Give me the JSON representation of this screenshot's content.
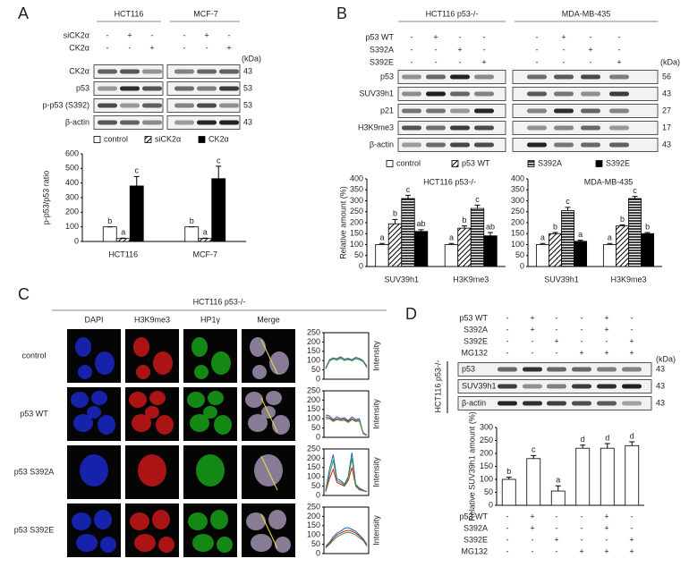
{
  "panels": {
    "A": {
      "label": "A",
      "cell_lines": [
        "HCT116",
        "MCF-7"
      ],
      "treatments": [
        {
          "name": "siCK2α",
          "signs": [
            "-",
            "+",
            "-",
            "-",
            "+",
            "-"
          ]
        },
        {
          "name": "CK2α",
          "signs": [
            "-",
            "-",
            "+",
            "-",
            "-",
            "+"
          ]
        }
      ],
      "unit": "(kDa)",
      "blots": [
        {
          "name": "CK2α",
          "kda": 43
        },
        {
          "name": "p53",
          "kda": 53
        },
        {
          "name": "p-p53 (S392)",
          "kda": 53
        },
        {
          "name": "β-actin",
          "kda": 43
        }
      ]
    },
    "B": {
      "label": "B",
      "cell_lines": [
        "HCT116 p53-/-",
        "MDA-MB-435"
      ],
      "treatments": [
        {
          "name": "p53 WT",
          "signs": [
            "-",
            "+",
            "-",
            "-",
            "-",
            "+",
            "-",
            "-"
          ]
        },
        {
          "name": "S392A",
          "signs": [
            "-",
            "-",
            "+",
            "-",
            "-",
            "-",
            "+",
            "-"
          ]
        },
        {
          "name": "S392E",
          "signs": [
            "-",
            "-",
            "-",
            "+",
            "-",
            "-",
            "-",
            "+"
          ]
        }
      ],
      "unit": "(kDa)",
      "blots": [
        {
          "name": "p53",
          "kda": 56
        },
        {
          "name": "SUV39h1",
          "kda": 43
        },
        {
          "name": "p21",
          "kda": 27
        },
        {
          "name": "H3K9me3",
          "kda": 17
        },
        {
          "name": "β-actin",
          "kda": 43
        }
      ]
    },
    "C": {
      "label": "C",
      "title": "HCT116 p53-/-",
      "channels": [
        "DAPI",
        "H3K9me3",
        "HP1γ",
        "Merge"
      ],
      "rows": [
        "control",
        "p53 WT",
        "p53 S392A",
        "p53 S392E"
      ]
    },
    "D": {
      "label": "D",
      "treatments": [
        {
          "name": "p53 WT",
          "signs": [
            "-",
            "+",
            "-",
            "-",
            "+",
            "-"
          ]
        },
        {
          "name": "S392A",
          "signs": [
            "-",
            "+",
            "-",
            "-",
            "+",
            "-"
          ]
        },
        {
          "name": "S392E",
          "signs": [
            "-",
            "-",
            "+",
            "-",
            "-",
            "+"
          ]
        },
        {
          "name": "MG132",
          "signs": [
            "-",
            "-",
            "-",
            "+",
            "+",
            "+"
          ]
        }
      ],
      "unit": "(kDa)",
      "side_label": "HCT116 p53-/-",
      "blots": [
        {
          "name": "p53",
          "kda": 43
        },
        {
          "name": "SUV39h1",
          "kda": 43
        },
        {
          "name": "β-actin",
          "kda": 43
        }
      ]
    }
  },
  "chart_data": [
    {
      "type": "bar",
      "ylabel": "p-p53/p53 ratio",
      "categories": [
        "HCT116",
        "MCF-7"
      ],
      "ylim": [
        0,
        600
      ],
      "yticks": [
        0,
        100,
        200,
        300,
        400,
        500,
        600
      ],
      "series": [
        {
          "name": "control",
          "fill": "white",
          "values": [
            100,
            100
          ],
          "errors": [
            0,
            0
          ],
          "letters": [
            "b",
            "b"
          ]
        },
        {
          "name": "siCK2α",
          "fill": "hatch",
          "values": [
            20,
            20
          ],
          "errors": [
            3,
            3
          ],
          "letters": [
            "a",
            "a"
          ]
        },
        {
          "name": "CK2α",
          "fill": "black",
          "values": [
            380,
            430
          ],
          "errors": [
            65,
            85
          ],
          "letters": [
            "c",
            "c"
          ]
        }
      ]
    },
    {
      "type": "bar",
      "title": "HCT116 p53-/-",
      "ylabel": "Relative amount (%)",
      "categories": [
        "SUV39h1",
        "H3K9me3"
      ],
      "ylim": [
        0,
        400
      ],
      "yticks": [
        0,
        50,
        100,
        150,
        200,
        250,
        300,
        350,
        400
      ],
      "series": [
        {
          "name": "control",
          "fill": "white",
          "values": [
            100,
            100
          ],
          "errors": [
            5,
            5
          ],
          "letters": [
            "a",
            "a"
          ]
        },
        {
          "name": "p53 WT",
          "fill": "hatch",
          "values": [
            195,
            175
          ],
          "errors": [
            20,
            10
          ],
          "letters": [
            "b",
            "b"
          ]
        },
        {
          "name": "S392A",
          "fill": "stripes",
          "values": [
            310,
            265
          ],
          "errors": [
            15,
            15
          ],
          "letters": [
            "c",
            "c"
          ]
        },
        {
          "name": "S392E",
          "fill": "black",
          "values": [
            160,
            140
          ],
          "errors": [
            8,
            15
          ],
          "letters": [
            "ab",
            "ab"
          ]
        }
      ]
    },
    {
      "type": "bar",
      "title": "MDA-MB-435",
      "categories": [
        "SUV39h1",
        "H3K9me3"
      ],
      "ylim": [
        0,
        400
      ],
      "yticks": [
        0,
        50,
        100,
        150,
        200,
        250,
        300,
        350,
        400
      ],
      "series": [
        {
          "fill": "white",
          "values": [
            100,
            100
          ],
          "errors": [
            5,
            5
          ],
          "letters": [
            "a",
            "a"
          ]
        },
        {
          "fill": "hatch",
          "values": [
            150,
            185
          ],
          "errors": [
            5,
            5
          ],
          "letters": [
            "b",
            "b"
          ]
        },
        {
          "fill": "stripes",
          "values": [
            255,
            310
          ],
          "errors": [
            15,
            10
          ],
          "letters": [
            "c",
            "c"
          ]
        },
        {
          "fill": "black",
          "values": [
            115,
            150
          ],
          "errors": [
            5,
            5
          ],
          "letters": [
            "a",
            "b"
          ]
        }
      ]
    },
    {
      "type": "line",
      "ylabel": "Intensity",
      "ylim": [
        0,
        250
      ],
      "yticks": [
        0,
        50,
        100,
        150,
        200,
        250
      ],
      "series": [
        {
          "color": "#1f5fbf",
          "values": [
            60,
            105,
            115,
            110,
            120,
            108,
            112,
            105,
            118,
            112,
            100,
            70
          ]
        },
        {
          "color": "#d02020",
          "values": [
            55,
            100,
            108,
            104,
            112,
            102,
            106,
            100,
            110,
            106,
            95,
            65
          ]
        },
        {
          "color": "#3a9a3a",
          "values": [
            58,
            98,
            110,
            102,
            115,
            100,
            108,
            98,
            112,
            104,
            96,
            62
          ]
        }
      ]
    },
    {
      "type": "line",
      "ylabel": "Intensity",
      "ylim": [
        0,
        250
      ],
      "yticks": [
        0,
        50,
        100,
        150,
        200,
        250
      ],
      "series": [
        {
          "color": "#1f5fbf",
          "values": [
            120,
            115,
            95,
            110,
            100,
            105,
            90,
            110,
            95,
            100,
            20,
            10
          ]
        },
        {
          "color": "#d02020",
          "values": [
            110,
            105,
            90,
            100,
            95,
            98,
            85,
            100,
            90,
            92,
            25,
            12
          ]
        },
        {
          "color": "#3a9a3a",
          "values": [
            100,
            100,
            85,
            95,
            90,
            92,
            80,
            95,
            85,
            88,
            22,
            10
          ]
        }
      ]
    },
    {
      "type": "line",
      "ylabel": "Intensity",
      "ylim": [
        0,
        250
      ],
      "yticks": [
        0,
        50,
        100,
        150,
        200,
        250
      ],
      "series": [
        {
          "color": "#1f5fbf",
          "values": [
            30,
            140,
            220,
            90,
            80,
            60,
            100,
            230,
            60,
            40,
            30,
            20
          ]
        },
        {
          "color": "#d02020",
          "values": [
            20,
            90,
            140,
            70,
            60,
            50,
            80,
            150,
            50,
            30,
            25,
            20
          ]
        },
        {
          "color": "#3a9a3a",
          "values": [
            25,
            110,
            190,
            80,
            70,
            55,
            90,
            200,
            55,
            35,
            28,
            20
          ]
        }
      ]
    },
    {
      "type": "line",
      "ylabel": "Intensity",
      "ylim": [
        0,
        250
      ],
      "yticks": [
        0,
        50,
        100,
        150,
        200,
        250
      ],
      "series": [
        {
          "color": "#1f5fbf",
          "values": [
            40,
            60,
            90,
            110,
            120,
            135,
            140,
            130,
            120,
            100,
            80,
            50
          ]
        },
        {
          "color": "#d02020",
          "values": [
            35,
            55,
            80,
            100,
            110,
            120,
            125,
            120,
            110,
            95,
            75,
            45
          ]
        },
        {
          "color": "#3a9a3a",
          "values": [
            30,
            50,
            70,
            90,
            100,
            110,
            115,
            110,
            100,
            85,
            70,
            40
          ]
        }
      ]
    },
    {
      "type": "bar",
      "ylabel": "Relative SUV39h1 amount (%)",
      "categories": [
        null,
        null,
        null,
        null,
        null,
        null
      ],
      "ylim": [
        0,
        300
      ],
      "yticks": [
        0,
        50,
        100,
        150,
        200,
        250,
        300
      ],
      "series": [
        {
          "fill": "white",
          "values": [
            100,
            180,
            55,
            220,
            220,
            230
          ],
          "errors": [
            8,
            12,
            20,
            12,
            18,
            15
          ],
          "letters": [
            "b",
            "c",
            "a",
            "d",
            "d",
            "d"
          ]
        }
      ]
    }
  ]
}
